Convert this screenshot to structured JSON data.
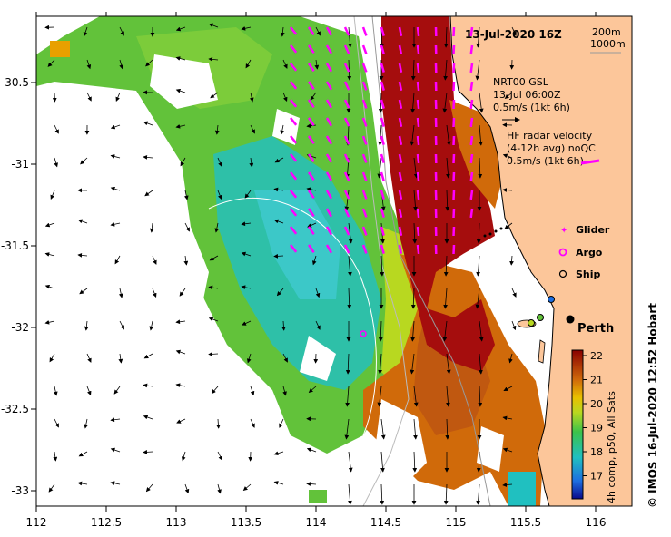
{
  "title": "13-Jul-2020 16Z",
  "depth_legend": [
    "200m",
    "1000m"
  ],
  "gsl_legend": {
    "line1": "NRT00 GSL",
    "line2": "13-Jul 06:00Z",
    "line3": "0.5m/s (1kt 6h)"
  },
  "hf_legend": {
    "line1": "HF radar velocity",
    "line2": "(4-12h avg) noQC",
    "line3": "0.5m/s (1kt 6h)"
  },
  "platforms": {
    "glider": "Glider",
    "argo": "Argo",
    "ship": "Ship"
  },
  "city": "Perth",
  "colorbar": {
    "title": "4h comp, p50, All Sats",
    "ticks": [
      "22",
      "21",
      "20",
      "19",
      "18",
      "17"
    ]
  },
  "credit": "IMOS 16-Jul-2020 12:52 Hobart",
  "copyright": "©",
  "axes": {
    "x_ticks": [
      "112",
      "112.5",
      "113",
      "113.5",
      "114",
      "114.5",
      "115",
      "115.5",
      "116"
    ],
    "y_ticks": [
      "-30.5",
      "-31",
      "-31.5",
      "-32",
      "-32.5",
      "-33"
    ]
  },
  "colors": {
    "land": "#fcc69a",
    "warm": "#a50d0d",
    "orange": "#d06a0a",
    "green": "#62c23a",
    "teal": "#2ec0a8"
  }
}
